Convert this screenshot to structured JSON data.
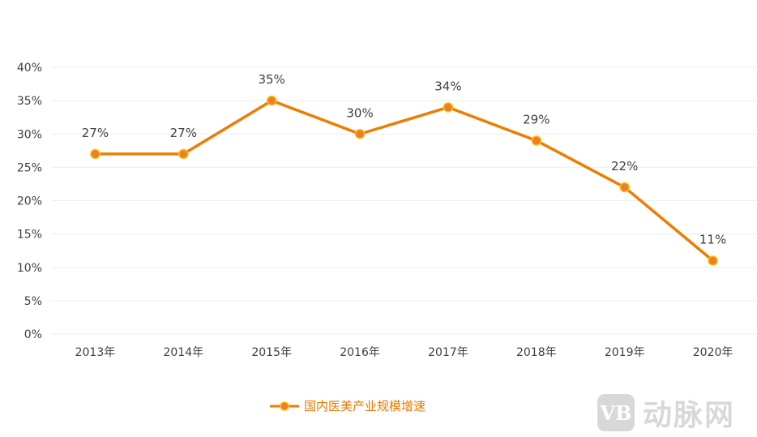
{
  "chart_data": {
    "type": "line",
    "title": "",
    "xlabel": "",
    "ylabel": "",
    "categories": [
      "2013年",
      "2014年",
      "2015年",
      "2016年",
      "2017年",
      "2018年",
      "2019年",
      "2020年"
    ],
    "series": [
      {
        "name": "国内医美产业规模增速",
        "values": [
          27,
          27,
          35,
          30,
          34,
          29,
          22,
          11
        ]
      }
    ],
    "data_labels": [
      "27%",
      "27%",
      "35%",
      "30%",
      "34%",
      "29%",
      "22%",
      "11%"
    ],
    "ylim": [
      0,
      40
    ],
    "yticks": [
      "0%",
      "5%",
      "10%",
      "15%",
      "20%",
      "25%",
      "30%",
      "35%",
      "40%"
    ],
    "grid": true,
    "legend": "bottom-center",
    "colors": {
      "line": "#ED7D00",
      "marker_fill": "#ED7D31",
      "marker_stroke": "#FFC000",
      "grid": "#EDEDED",
      "text": "#404040"
    }
  },
  "watermark": {
    "logo": "VB",
    "text": "动脉网"
  }
}
